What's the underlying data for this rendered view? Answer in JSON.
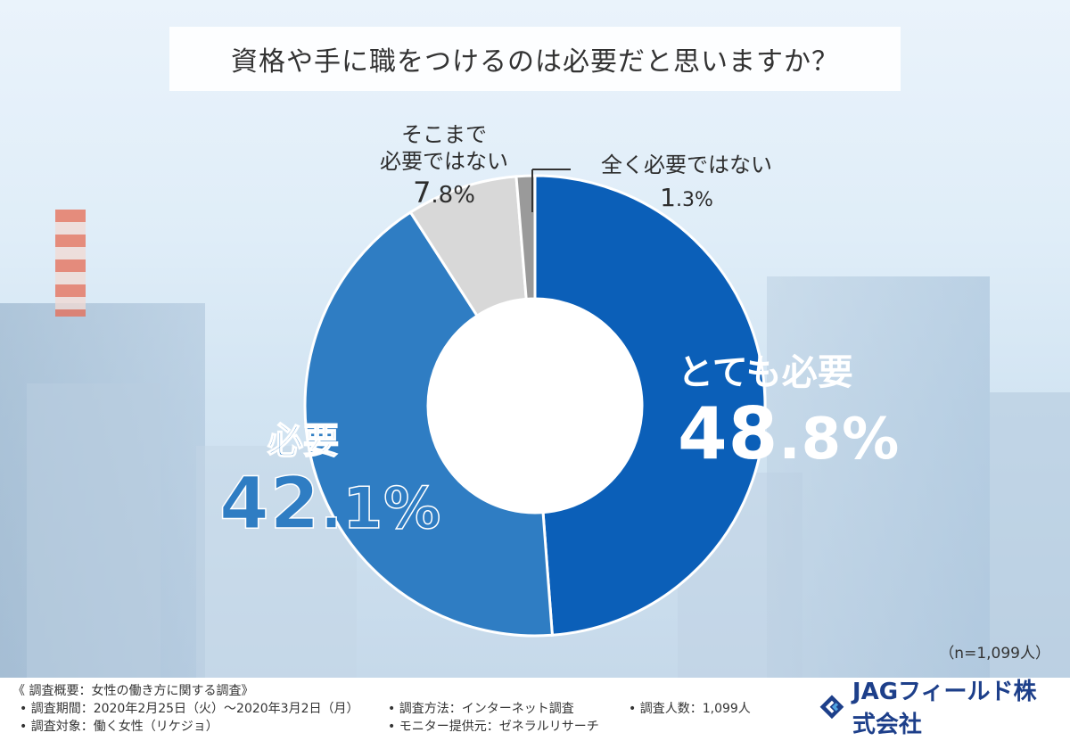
{
  "title": "資格や手に職をつけるのは必要だと思いますか？",
  "chart_data": {
    "type": "pie",
    "donut": true,
    "slices": [
      {
        "label": "とても必要",
        "value": 48.8,
        "color": "#0b5fb8"
      },
      {
        "label": "必要",
        "value": 42.1,
        "color": "#2f7dc3"
      },
      {
        "label": "そこまで必要ではない",
        "value": 7.8,
        "color": "#d8d8d8"
      },
      {
        "label": "全く必要ではない",
        "value": 1.3,
        "color": "#9a9a9a"
      }
    ]
  },
  "labels": {
    "very_necessary": {
      "name": "とても必要",
      "int": "48",
      "dec": ".8%"
    },
    "necessary": {
      "name": "必要",
      "int": "42",
      "dec": ".1%"
    },
    "not_so": {
      "line1": "そこまで",
      "line2": "必要ではない",
      "int": "7",
      "dec": ".8%"
    },
    "not_at_all": {
      "name": "全く必要ではない",
      "int": "1",
      "dec": ".3%"
    }
  },
  "sample_note": "（n=1,099人）",
  "footer": {
    "overview": "《 調査概要：女性の働き方に関する調査》",
    "period": "• 調査期間：2020年2月25日（火）～2020年3月2日（月）",
    "target": "• 調査対象：働く女性（リケジョ）",
    "method": "• 調査方法：インターネット調査",
    "provider": "• モニター提供元：ゼネラルリサーチ",
    "count": "• 調査人数：1,099人",
    "company": "JAGフィールド株式会社",
    "logo_icon": "jag-logo-icon",
    "logo_color": "#1d3f8a"
  }
}
